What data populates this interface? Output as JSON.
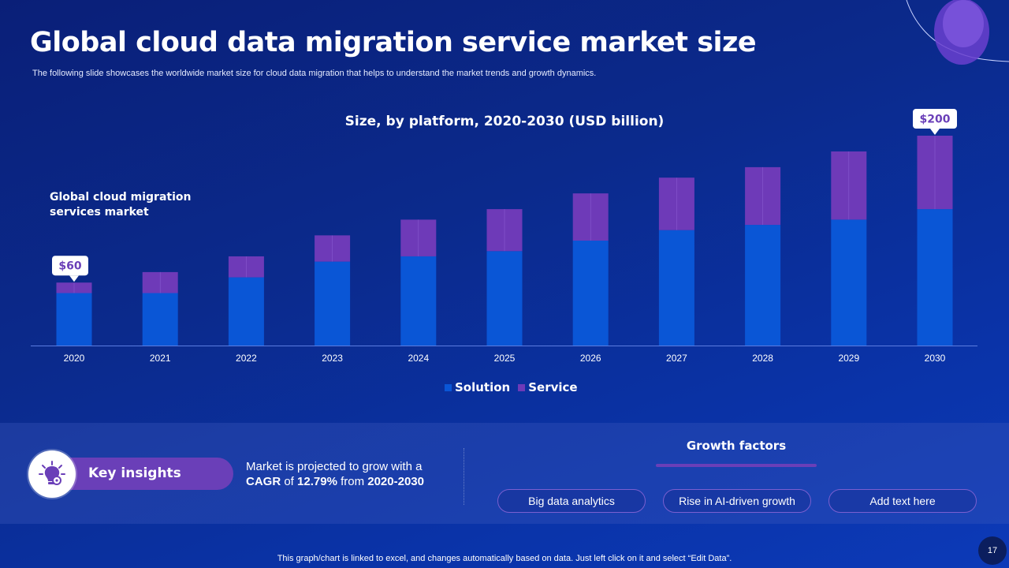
{
  "slide": {
    "title": "Global cloud data migration service market size",
    "subtitle": "The following slide showcases the worldwide market size for cloud data migration that helps to understand the market trends and growth dynamics.",
    "market_label": "Global cloud migration services market",
    "footer_note": "This graph/chart is linked to excel, and changes automatically based on data. Just left click on it and select “Edit Data”.",
    "page_number": "17"
  },
  "chart_data": {
    "type": "bar",
    "stacked": true,
    "title": "Size, by platform, 2020-2030 (USD billion)",
    "categories": [
      "2020",
      "2021",
      "2022",
      "2023",
      "2024",
      "2025",
      "2026",
      "2027",
      "2028",
      "2029",
      "2030"
    ],
    "series": [
      {
        "name": "Solution",
        "color": "#0a56d6",
        "values": [
          50,
          50,
          65,
          80,
          85,
          90,
          100,
          110,
          115,
          120,
          130
        ]
      },
      {
        "name": "Service",
        "color": "#6e3ab8",
        "values": [
          10,
          20,
          20,
          25,
          35,
          40,
          45,
          50,
          55,
          65,
          70
        ]
      }
    ],
    "callouts": [
      {
        "category": "2020",
        "label": "$60"
      },
      {
        "category": "2030",
        "label": "$200"
      }
    ],
    "ylim": [
      0,
      200
    ],
    "legend": "bottom-center",
    "grid": false
  },
  "legend": {
    "solution_label": "Solution",
    "service_label": "Service",
    "solution_color": "#0a56d6",
    "service_color": "#6e3ab8"
  },
  "insights": {
    "label": "Key insights",
    "icon": "lightbulb-gear-icon",
    "text_part1": "Market is projected to grow with a",
    "text_cagr_label": "CAGR",
    "text_of": "of",
    "text_cagr_value": "12.79%",
    "text_from": "from",
    "text_period": "2020-2030"
  },
  "growth_factors": {
    "title": "Growth factors",
    "items": [
      "Big data analytics",
      "Rise in AI-driven growth",
      "Add text here"
    ]
  }
}
